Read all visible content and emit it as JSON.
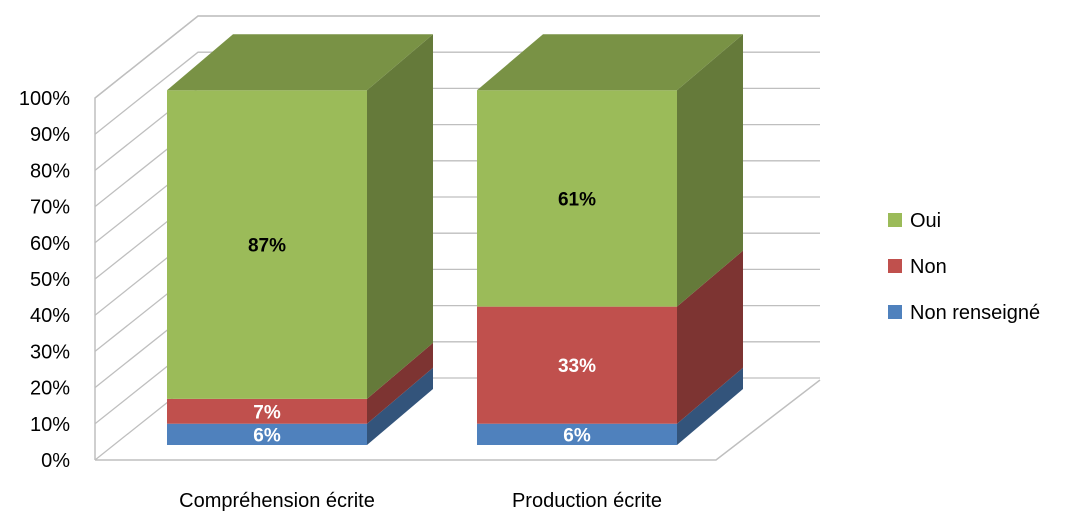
{
  "chart_data": {
    "type": "bar",
    "stacked": true,
    "percent": true,
    "three_d": true,
    "title": "",
    "xlabel": "",
    "ylabel": "",
    "ylim": [
      0,
      100
    ],
    "y_ticks": [
      "0%",
      "10%",
      "20%",
      "30%",
      "40%",
      "50%",
      "60%",
      "70%",
      "80%",
      "90%",
      "100%"
    ],
    "grid": true,
    "legend_position": "right",
    "categories": [
      "Compréhension écrite",
      "Production écrite"
    ],
    "series": [
      {
        "name": "Non renseigné",
        "values": [
          6,
          6
        ],
        "labels": [
          "6%",
          "6%"
        ],
        "color": "#4F81BD"
      },
      {
        "name": "Non",
        "values": [
          7,
          33
        ],
        "labels": [
          "7%",
          "33%"
        ],
        "color": "#C0504D"
      },
      {
        "name": "Oui",
        "values": [
          87,
          61
        ],
        "labels": [
          "87%",
          "61%"
        ],
        "color": "#9BBB59"
      }
    ],
    "legend_order": [
      "Oui",
      "Non",
      "Non renseigné"
    ]
  }
}
